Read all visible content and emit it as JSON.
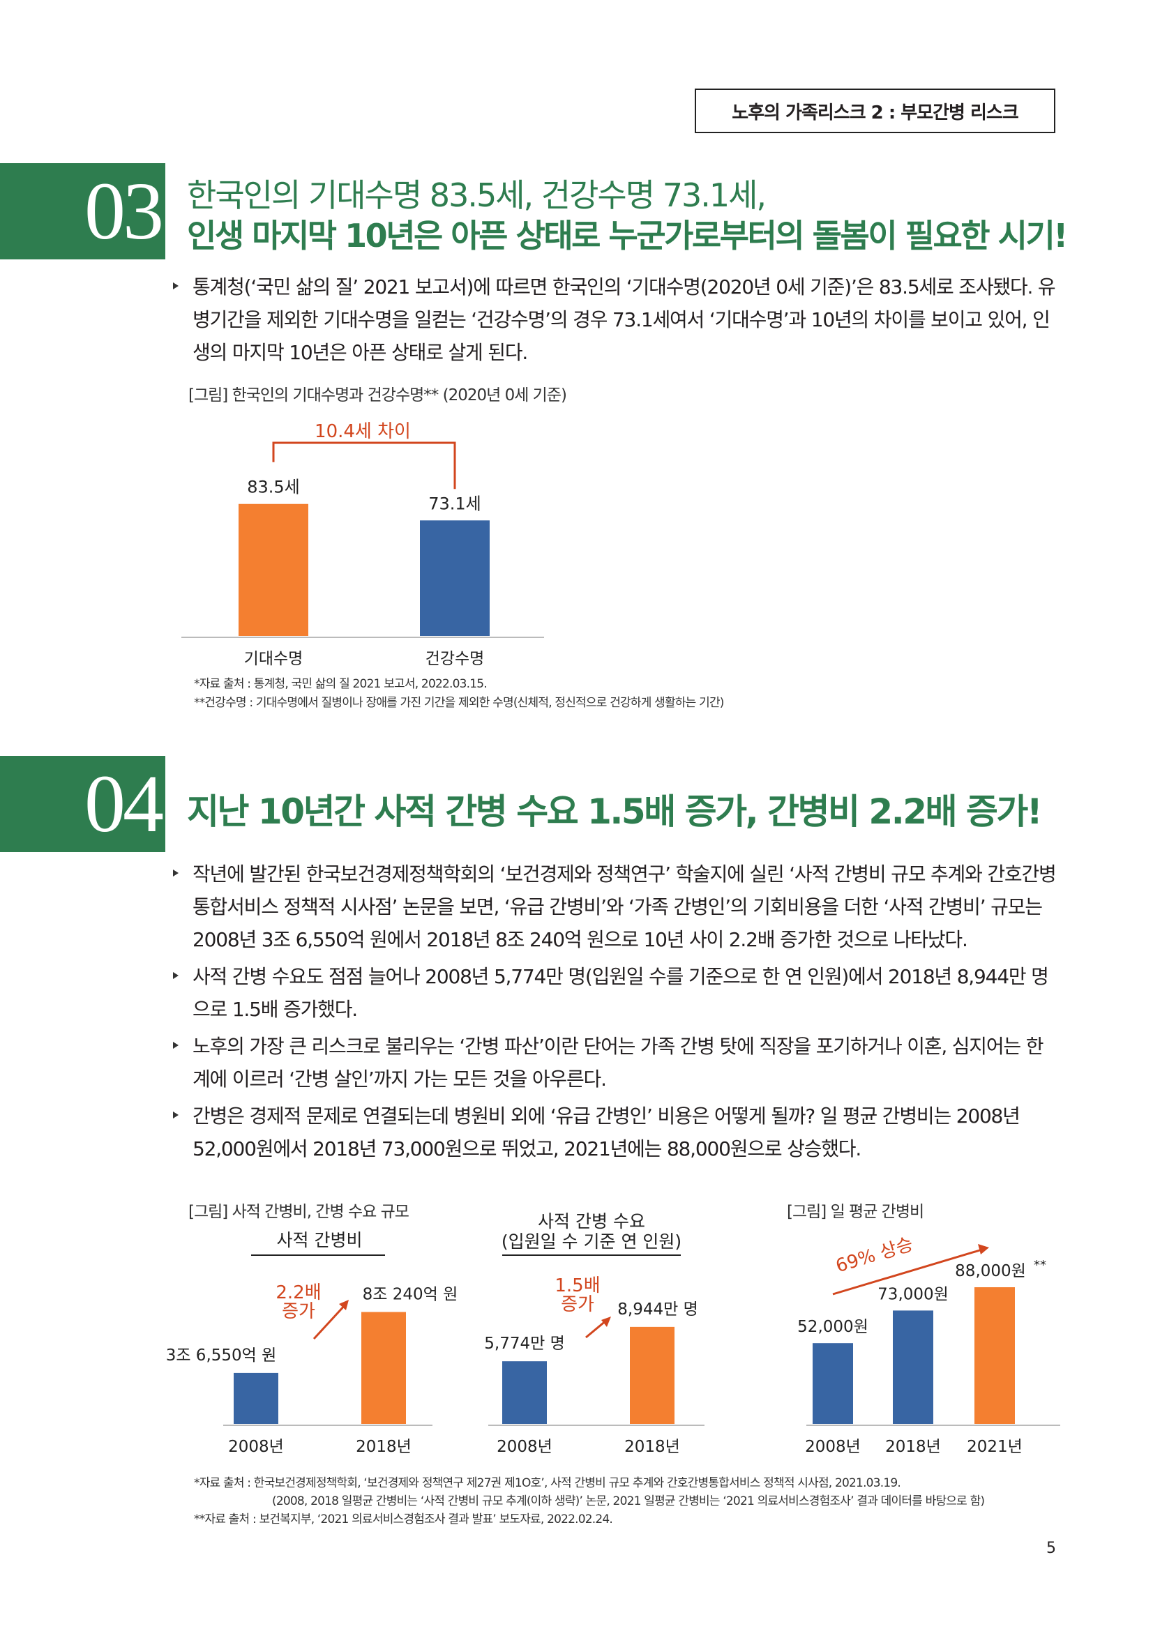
{
  "header": {
    "label": "노후의 가족리스크 2 : 부모간병 리스크"
  },
  "section3": {
    "number": "03",
    "title_line1": "한국인의 기대수명 83.5세, 건강수명 73.1세,",
    "title_line2": "인생 마지막 10년은 아픈 상태로 누군가로부터의 돌봄이 필요한 시기!",
    "bullets": [
      "통계청(‘국민 삶의 질’ 2021 보고서)에 따르면 한국인의 ‘기대수명(2020년 0세 기준)’은 83.5세로 조사됐다. 유병기간을 제외한 기대수명을 일컫는 ‘건강수명’의 경우 73.1세여서 ‘기대수명’과 10년의 차이를 보이고 있어, 인생의 마지막 10년은 아픈 상태로 살게 된다."
    ],
    "figure_caption": "[그림] 한국인의 기대수명과 건강수명** (2020년 0세 기준)",
    "note1": "*자료 출처 : 통계청, 국민 삶의 질 2021 보고서, 2022.03.15.",
    "note2": "**건강수명 : 기대수명에서 질병이나 장애를 가진 기간을 제외한 수명(신체적, 정신적으로 건강하게 생활하는 기간)"
  },
  "chart_data": [
    {
      "type": "bar",
      "categories": [
        "기대수명",
        "건강수명"
      ],
      "values": [
        83.5,
        73.1
      ],
      "value_labels": [
        "83.5세",
        "73.1세"
      ],
      "colors": [
        "#f47f30",
        "#3865a3"
      ],
      "annotation": "10.4세 차이"
    },
    {
      "type": "bar",
      "title": "사적 간병비",
      "categories": [
        "2008년",
        "2018년"
      ],
      "values": [
        3.655,
        8.024
      ],
      "value_labels": [
        "3조 6,550억 원",
        "8조 240억 원"
      ],
      "colors": [
        "#3865a3",
        "#f47f30"
      ],
      "annotation": "2.2배 증가"
    },
    {
      "type": "bar",
      "title": "사적 간병 수요 (입원일 수 기준 연 인원)",
      "categories": [
        "2008년",
        "2018년"
      ],
      "values": [
        5774,
        8944
      ],
      "value_labels": [
        "5,774만 명",
        "8,944만 명"
      ],
      "colors": [
        "#3865a3",
        "#f47f30"
      ],
      "annotation": "1.5배 증가"
    },
    {
      "type": "bar",
      "categories": [
        "2008년",
        "2018년",
        "2021년"
      ],
      "values": [
        52000,
        73000,
        88000
      ],
      "value_labels": [
        "52,000원",
        "73,000원",
        "88,000원"
      ],
      "footnote_mark": "**",
      "colors": [
        "#3865a3",
        "#3865a3",
        "#f47f30"
      ],
      "annotation": "69% 상승"
    }
  ],
  "section4": {
    "number": "04",
    "title": "지난 10년간 사적 간병 수요 1.5배 증가, 간병비 2.2배 증가!",
    "bullets": [
      "작년에 발간된 한국보건경제정책학회의 ‘보건경제와 정책연구’ 학술지에 실린 ‘사적 간병비 규모 추계와 간호간병통합서비스 정책적 시사점’ 논문을 보면, ‘유급 간병비’와 ‘가족 간병인’의 기회비용을 더한 ‘사적 간병비’ 규모는 2008년 3조 6,550억 원에서 2018년 8조 240억 원으로 10년 사이 2.2배 증가한 것으로 나타났다.",
      "사적 간병 수요도 점점 늘어나 2008년 5,774만 명(입원일 수를 기준으로 한 연 인원)에서 2018년 8,944만 명으로 1.5배 증가했다.",
      "노후의 가장 큰 리스크로 불리우는 ‘간병 파산’이란 단어는 가족 간병 탓에 직장을 포기하거나 이혼, 심지어는 한계에 이르러 ‘간병 살인’까지 가는 모든 것을 아우른다.",
      "간병은 경제적 문제로 연결되는데 병원비 외에 ‘유급 간병인’ 비용은 어떻게 될까? 일 평균 간병비는 2008년 52,000원에서 2018년 73,000원으로 뛰었고, 2021년에는 88,000원으로 상승했다."
    ],
    "figure_caption_left": "[그림] 사적 간병비, 간병 수요 규모",
    "figure_caption_right": "[그림] 일 평균 간병비",
    "chart2_title": "사적 간병비",
    "chart3_title_line1": "사적 간병 수요",
    "chart3_title_line2": "(입원일 수 기준 연 인원)",
    "annot2_line1": "2.2배",
    "annot2_line2": "증가",
    "annot3_line1": "1.5배",
    "annot3_line2": "증가",
    "note1": "*자료 출처 : 한국보건경제정책학회, ‘보건경제와 정책연구 제27권 제1O호’, 사적 간병비 규모 추계와 간호간병통합서비스 정책적 시사점, 2021.03.19.",
    "note2": "(2008, 2018 일평균 간병비는 ‘사적 간병비 규모 추계(이하 생략)’ 논문, 2021 일평균 간병비는 ‘2021 의료서비스경험조사’ 결과 데이터를 바탕으로 함)",
    "note3": "**자료 출처 : 보건복지부, ‘2021 의료서비스경험조사 결과 발표’ 보도자료, 2022.02.24."
  },
  "page_number": "5"
}
